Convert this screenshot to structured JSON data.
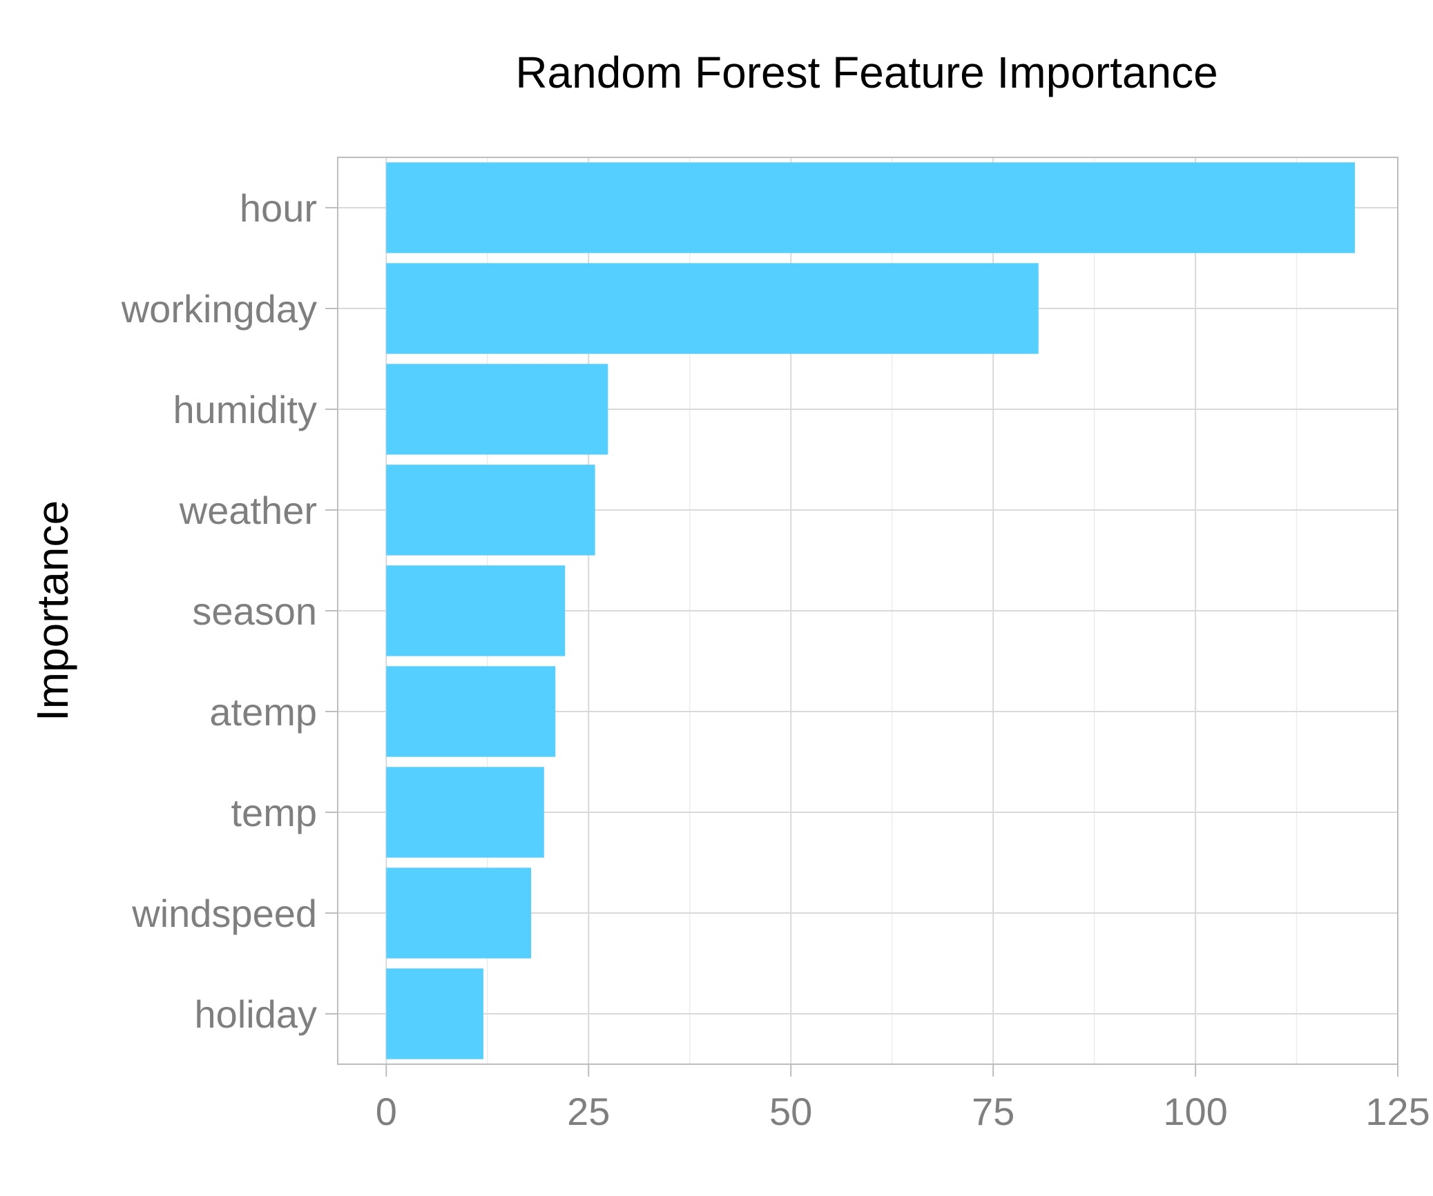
{
  "chart_data": {
    "type": "bar",
    "orientation": "horizontal",
    "title": "Random Forest Feature Importance",
    "xlabel": "",
    "ylabel": "Importance",
    "categories": [
      "hour",
      "workingday",
      "humidity",
      "weather",
      "season",
      "atemp",
      "temp",
      "windspeed",
      "holiday"
    ],
    "values": [
      119.7,
      80.6,
      27.4,
      25.8,
      22.1,
      20.9,
      19.5,
      17.9,
      12.0
    ],
    "xlim": [
      -6,
      125
    ],
    "x_ticks": [
      "0",
      "25",
      "50",
      "75",
      "100",
      "125"
    ],
    "x_tick_values": [
      0,
      25,
      50,
      75,
      100,
      125
    ],
    "grid": true,
    "bar_color": "#54CFFF",
    "legend": "none"
  }
}
